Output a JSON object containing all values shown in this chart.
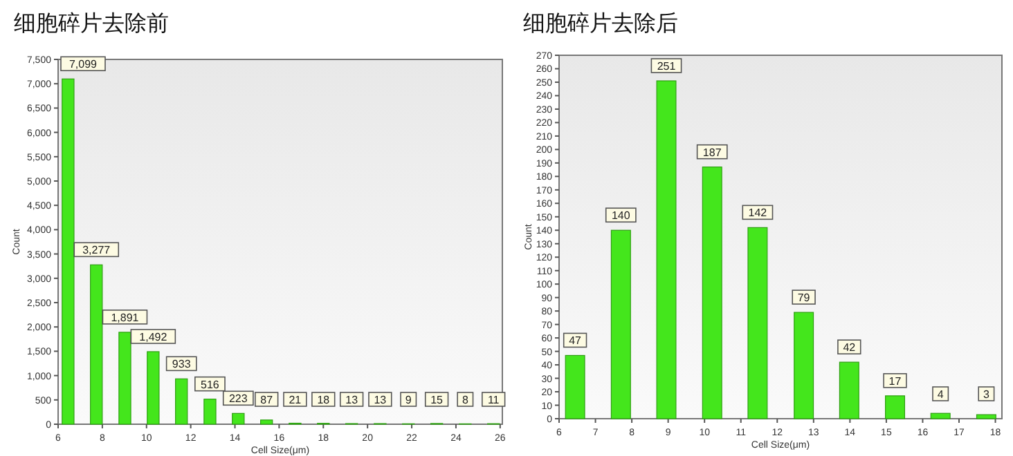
{
  "chart_data": [
    {
      "type": "bar",
      "title": "细胞碎片去除前",
      "xlabel": "Cell Size(μm)",
      "ylabel": "Count",
      "x": [
        6.45,
        7.73,
        9.02,
        10.3,
        11.58,
        12.87,
        14.15,
        15.43,
        16.72,
        18.0,
        19.28,
        20.57,
        21.85,
        23.13,
        24.42,
        25.7
      ],
      "values": [
        7099,
        3277,
        1891,
        1492,
        933,
        516,
        223,
        87,
        21,
        18,
        13,
        13,
        9,
        15,
        8,
        11
      ],
      "color": "#44e61c",
      "value_labels": [
        "7,099",
        "3,277",
        "1,891",
        "1,492",
        "933",
        "516",
        "223",
        "87",
        "21",
        "18",
        "13",
        "13",
        "9",
        "15",
        "8",
        "11"
      ],
      "xlim": [
        6,
        26.1
      ],
      "xticks": [
        6,
        8,
        10,
        12,
        14,
        16,
        18,
        20,
        22,
        24,
        26
      ],
      "ylim": [
        0,
        7500
      ],
      "yticks": [
        0,
        {
          "value": 500,
          "label": "500"
        },
        {
          "value": 1000,
          "label": "1,000"
        },
        {
          "value": 1500,
          "label": "1,500"
        },
        {
          "value": 2000,
          "label": "2,000"
        },
        {
          "value": 2500,
          "label": "2,500"
        },
        {
          "value": 3000,
          "label": "3,000"
        },
        {
          "value": 3500,
          "label": "3,500"
        },
        {
          "value": 4000,
          "label": "4,000"
        },
        {
          "value": 4500,
          "label": "4,500"
        },
        {
          "value": 5000,
          "label": "5,000"
        },
        {
          "value": 5500,
          "label": "5,500"
        },
        {
          "value": 6000,
          "label": "6,000"
        },
        {
          "value": 6500,
          "label": "6,500"
        },
        {
          "value": 7000,
          "label": "7,000"
        },
        {
          "value": 7500,
          "label": "7,500"
        }
      ]
    },
    {
      "type": "bar",
      "title": "细胞碎片去除后",
      "xlabel": "Cell Size(μm)",
      "ylabel": "Count",
      "x": [
        6.44,
        7.7,
        8.95,
        10.21,
        11.46,
        12.73,
        13.98,
        15.24,
        16.49,
        17.75
      ],
      "values": [
        47,
        140,
        251,
        187,
        142,
        79,
        42,
        17,
        4,
        3
      ],
      "color": "#44e61c",
      "data_labels": true,
      "xlim": [
        6,
        18.18
      ],
      "xticks": [
        6,
        7,
        8,
        9,
        10,
        11,
        12,
        13,
        14,
        15,
        16,
        17,
        18
      ],
      "ylim": [
        0,
        270
      ],
      "yticks": [
        0,
        10,
        20,
        30,
        40,
        50,
        60,
        70,
        80,
        90,
        100,
        110,
        120,
        130,
        140,
        150,
        160,
        170,
        180,
        190,
        200,
        210,
        220,
        230,
        240,
        250,
        260,
        270
      ]
    }
  ]
}
